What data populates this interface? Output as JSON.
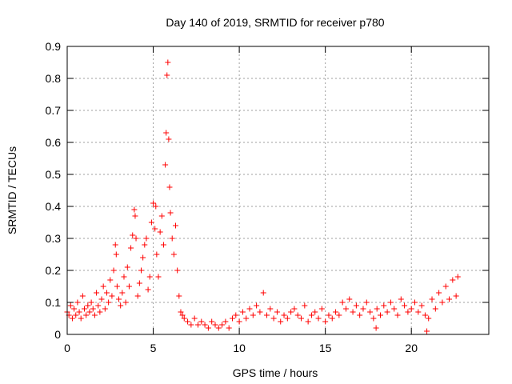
{
  "chart_data": {
    "type": "scatter",
    "title": "Day 140 of 2019, SRMTID for receiver p780",
    "xlabel": "GPS time / hours",
    "ylabel": "SRMTID / TECUs",
    "xlim": [
      0,
      24.5
    ],
    "ylim": [
      0,
      0.9
    ],
    "xticks": [
      0,
      5,
      10,
      15,
      20
    ],
    "xtick_labels": [
      "0",
      "5",
      "10",
      "15",
      "20"
    ],
    "yticks": [
      0,
      0.1,
      0.2,
      0.3,
      0.4,
      0.5,
      0.6,
      0.7,
      0.8,
      0.9
    ],
    "ytick_labels": [
      "0",
      "0.1",
      "0.2",
      "0.3",
      "0.4",
      "0.5",
      "0.6",
      "0.7",
      "0.8",
      "0.9"
    ],
    "grid": true,
    "marker": "+",
    "color": "#ff0000",
    "series": [
      {
        "name": "SRMTID",
        "x": [
          0.0,
          0.1,
          0.2,
          0.3,
          0.4,
          0.5,
          0.6,
          0.7,
          0.8,
          0.9,
          1.0,
          1.1,
          1.2,
          1.3,
          1.4,
          1.5,
          1.6,
          1.7,
          1.8,
          1.9,
          2.0,
          2.1,
          2.2,
          2.3,
          2.4,
          2.5,
          2.6,
          2.7,
          2.8,
          2.85,
          2.9,
          3.0,
          3.1,
          3.2,
          3.3,
          3.4,
          3.5,
          3.6,
          3.7,
          3.8,
          3.9,
          3.95,
          4.0,
          4.1,
          4.2,
          4.3,
          4.4,
          4.5,
          4.6,
          4.7,
          4.8,
          4.9,
          5.0,
          5.1,
          5.15,
          5.2,
          5.3,
          5.4,
          5.5,
          5.6,
          5.7,
          5.75,
          5.8,
          5.85,
          5.9,
          5.95,
          6.0,
          6.1,
          6.2,
          6.3,
          6.4,
          6.5,
          6.6,
          6.7,
          6.8,
          7.0,
          7.2,
          7.4,
          7.6,
          7.8,
          8.0,
          8.2,
          8.4,
          8.6,
          8.8,
          9.0,
          9.2,
          9.4,
          9.6,
          9.8,
          10.0,
          10.2,
          10.4,
          10.6,
          10.8,
          11.0,
          11.2,
          11.4,
          11.6,
          11.8,
          12.0,
          12.2,
          12.4,
          12.6,
          12.8,
          13.0,
          13.2,
          13.4,
          13.6,
          13.8,
          14.0,
          14.2,
          14.4,
          14.6,
          14.8,
          15.0,
          15.2,
          15.4,
          15.6,
          15.8,
          16.0,
          16.2,
          16.4,
          16.6,
          16.8,
          17.0,
          17.2,
          17.4,
          17.6,
          17.8,
          17.95,
          18.0,
          18.2,
          18.4,
          18.6,
          18.8,
          19.0,
          19.2,
          19.4,
          19.6,
          19.8,
          20.0,
          20.2,
          20.4,
          20.6,
          20.8,
          20.9,
          21.0,
          21.2,
          21.4,
          21.6,
          21.8,
          22.0,
          22.2,
          22.4,
          22.6,
          22.7
        ],
        "y": [
          0.07,
          0.06,
          0.09,
          0.05,
          0.08,
          0.06,
          0.1,
          0.07,
          0.05,
          0.12,
          0.08,
          0.06,
          0.09,
          0.07,
          0.1,
          0.08,
          0.06,
          0.13,
          0.09,
          0.07,
          0.11,
          0.15,
          0.08,
          0.13,
          0.1,
          0.17,
          0.12,
          0.2,
          0.28,
          0.25,
          0.15,
          0.11,
          0.09,
          0.13,
          0.18,
          0.1,
          0.21,
          0.15,
          0.27,
          0.31,
          0.39,
          0.37,
          0.3,
          0.12,
          0.16,
          0.2,
          0.24,
          0.28,
          0.3,
          0.14,
          0.18,
          0.35,
          0.41,
          0.33,
          0.4,
          0.25,
          0.18,
          0.32,
          0.37,
          0.28,
          0.53,
          0.63,
          0.81,
          0.85,
          0.61,
          0.46,
          0.38,
          0.3,
          0.25,
          0.34,
          0.2,
          0.12,
          0.07,
          0.06,
          0.05,
          0.04,
          0.03,
          0.05,
          0.03,
          0.04,
          0.03,
          0.02,
          0.04,
          0.03,
          0.02,
          0.03,
          0.04,
          0.02,
          0.05,
          0.06,
          0.04,
          0.07,
          0.05,
          0.08,
          0.06,
          0.09,
          0.07,
          0.13,
          0.06,
          0.08,
          0.05,
          0.07,
          0.04,
          0.06,
          0.05,
          0.07,
          0.08,
          0.06,
          0.05,
          0.09,
          0.04,
          0.06,
          0.07,
          0.05,
          0.08,
          0.04,
          0.06,
          0.05,
          0.07,
          0.06,
          0.1,
          0.08,
          0.11,
          0.07,
          0.09,
          0.06,
          0.08,
          0.1,
          0.07,
          0.05,
          0.02,
          0.08,
          0.06,
          0.09,
          0.07,
          0.1,
          0.08,
          0.06,
          0.11,
          0.09,
          0.07,
          0.08,
          0.1,
          0.07,
          0.09,
          0.06,
          0.01,
          0.05,
          0.11,
          0.08,
          0.13,
          0.1,
          0.15,
          0.11,
          0.17,
          0.12,
          0.18
        ]
      }
    ]
  }
}
